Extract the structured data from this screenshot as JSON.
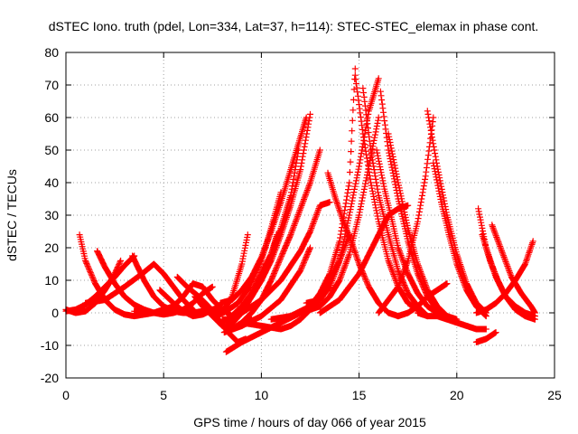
{
  "chart_data": {
    "type": "scatter",
    "title": "dSTEC Iono. truth (pdel, Lon=334, Lat=37, h=114): STEC-STEC_elemax in phase cont.",
    "xlabel": "GPS time / hours of day 066 of year 2015",
    "ylabel": "dSTEC  / TECUs",
    "xlim": [
      0,
      25
    ],
    "ylim": [
      -20,
      80
    ],
    "xticks": [
      0,
      5,
      10,
      15,
      20,
      25
    ],
    "yticks": [
      -20,
      -10,
      0,
      10,
      20,
      30,
      40,
      50,
      60,
      70,
      80
    ],
    "grid": true,
    "marker": "+",
    "color": "#ff0000",
    "series": [
      {
        "x": [
          0.7,
          1.0,
          1.5,
          2.0,
          2.5,
          3.0,
          3.5,
          4.0,
          4.5,
          5.0,
          5.5,
          6.0,
          6.4
        ],
        "y": [
          24,
          16,
          9,
          4,
          1,
          -0.5,
          -1,
          -0.5,
          0,
          1,
          1.5,
          0.5,
          0
        ]
      },
      {
        "x": [
          0.0,
          0.5,
          1.0,
          1.5,
          2.0,
          2.5,
          2.8
        ],
        "y": [
          1,
          0,
          0.5,
          3,
          7,
          12,
          16
        ]
      },
      {
        "x": [
          1.6,
          2.0,
          2.5,
          3.0,
          3.5,
          4.0,
          4.5,
          5.0,
          5.5,
          6.0,
          6.5,
          7.0,
          7.5
        ],
        "y": [
          19,
          14,
          9,
          5,
          2.5,
          1,
          0,
          -0.5,
          0,
          1,
          3,
          6,
          8
        ]
      },
      {
        "x": [
          0.0,
          0.5,
          1.0,
          1.5,
          2.0,
          2.5,
          3.0,
          3.5
        ],
        "y": [
          0.5,
          1,
          2.5,
          5,
          8,
          11,
          14.5,
          17.5
        ]
      },
      {
        "x": [
          3.4,
          4.0,
          4.5,
          5.0,
          5.5,
          6.0,
          6.5,
          7.0,
          7.5,
          8.0
        ],
        "y": [
          17.5,
          10,
          5,
          2,
          0.5,
          0,
          0,
          0.5,
          1,
          0.5
        ]
      },
      {
        "x": [
          1.0,
          2.0,
          3.0,
          4.0,
          4.5,
          5.0,
          5.5,
          6.0,
          6.5
        ],
        "y": [
          3,
          4,
          8,
          12.5,
          15,
          12,
          8,
          4,
          1
        ]
      },
      {
        "x": [
          4.8,
          5.5,
          6.0,
          6.5,
          7.0,
          7.5,
          8.0
        ],
        "y": [
          7,
          3,
          0.5,
          -1,
          -0.5,
          1,
          2
        ]
      },
      {
        "x": [
          3.5,
          4.5,
          5.5,
          6.0,
          6.5,
          7.0,
          7.5,
          8.0,
          8.5
        ],
        "y": [
          0.5,
          0,
          2,
          5,
          9,
          8,
          4,
          1,
          -1
        ]
      },
      {
        "x": [
          5.7,
          6.2,
          6.8,
          7.3,
          7.8,
          8.3,
          8.8,
          9.2
        ],
        "y": [
          11,
          8,
          5,
          2,
          -2,
          -6,
          -9,
          -8
        ]
      },
      {
        "x": [
          6.6,
          7.0,
          7.5,
          8.0,
          8.5,
          9.0,
          9.5
        ],
        "y": [
          5,
          2,
          -1,
          -4,
          -5,
          -4,
          -2
        ]
      },
      {
        "x": [
          7.0,
          7.5,
          7.8,
          8.0,
          8.5,
          9.0,
          9.3
        ],
        "y": [
          2,
          0,
          -0.5,
          0,
          5,
          15,
          24
        ]
      },
      {
        "x": [
          7.9,
          8.5,
          9.0,
          9.5,
          10.0,
          10.5,
          11.0,
          11.5,
          12.0,
          12.3
        ],
        "y": [
          3,
          4,
          7,
          11,
          17,
          25,
          34,
          44,
          54,
          60
        ]
      },
      {
        "x": [
          8.0,
          8.5,
          9.0,
          9.5,
          10.0,
          10.5,
          11.0,
          11.5,
          12.0,
          12.5
        ],
        "y": [
          -2,
          -2,
          1,
          5,
          10,
          16,
          24,
          33,
          44,
          61
        ]
      },
      {
        "x": [
          8.5,
          9.0,
          9.5,
          10.0,
          10.5,
          11.0,
          11.5,
          12.0,
          12.5,
          13.0
        ],
        "y": [
          -5,
          -3,
          0,
          4,
          10,
          17,
          24,
          32,
          40,
          50
        ]
      },
      {
        "x": [
          8.0,
          8.5,
          9.0,
          9.5,
          10.0,
          10.5,
          11.0,
          11.5,
          11.9
        ],
        "y": [
          -3,
          -1,
          2,
          5,
          10,
          17,
          26,
          36,
          50
        ]
      },
      {
        "x": [
          7.7,
          8.2,
          8.8,
          9.4,
          10.0,
          10.5,
          11.0
        ],
        "y": [
          -1,
          0.5,
          3,
          8,
          16,
          26,
          37
        ]
      },
      {
        "x": [
          8.4,
          9.0,
          9.5,
          10.0,
          10.5,
          10.9
        ],
        "y": [
          -4,
          0,
          5,
          11,
          18,
          25
        ]
      },
      {
        "x": [
          8.3,
          9.0,
          9.5,
          10.0,
          10.5,
          10.8
        ],
        "y": [
          -2,
          2,
          6,
          12,
          18,
          24
        ]
      },
      {
        "x": [
          8.2,
          9.0,
          10.0,
          11.0,
          12.0,
          12.5,
          13.0,
          13.5
        ],
        "y": [
          -3,
          0,
          4,
          10,
          19,
          25,
          33,
          34
        ]
      },
      {
        "x": [
          8.1,
          9.0,
          10.0,
          11.0,
          12.0,
          12.5
        ],
        "y": [
          -6,
          -4,
          -1,
          4,
          13,
          20
        ]
      },
      {
        "x": [
          8.2,
          9.0,
          10.0,
          11.0,
          12.0,
          12.5,
          13.0
        ],
        "y": [
          -12,
          -9,
          -6,
          -3,
          0,
          2,
          4
        ]
      },
      {
        "x": [
          9.0,
          10.0,
          11.0,
          11.5,
          12.0,
          12.5,
          13.0,
          13.5,
          14.0,
          14.5
        ],
        "y": [
          -3,
          -4,
          -5,
          -4,
          -2,
          1,
          5,
          10,
          16,
          24
        ]
      },
      {
        "x": [
          12.0,
          13.0,
          13.5,
          14.0,
          14.5,
          15.0,
          15.5,
          16.0
        ],
        "y": [
          0,
          2,
          5,
          10,
          18,
          30,
          45,
          60
        ]
      },
      {
        "x": [
          10.5,
          11.5,
          12.5,
          13.0,
          13.5,
          14.0,
          14.5,
          14.8
        ],
        "y": [
          -2,
          -1,
          2,
          6,
          12,
          22,
          40,
          75
        ]
      },
      {
        "x": [
          12.3,
          13.0,
          13.5,
          14.0,
          14.5,
          15.0,
          15.5,
          16.0
        ],
        "y": [
          3,
          4,
          8,
          16,
          30,
          45,
          62,
          72
        ]
      },
      {
        "x": [
          13.4,
          13.8,
          14.2,
          14.6,
          15.0,
          15.5,
          16.0,
          16.5,
          17.0
        ],
        "y": [
          43,
          35,
          28,
          22,
          15,
          8,
          3,
          0,
          -1
        ]
      },
      {
        "x": [
          14.8,
          15.2,
          15.6,
          16.0,
          16.5,
          17.0,
          17.5,
          18.0
        ],
        "y": [
          73,
          55,
          40,
          28,
          16,
          8,
          3,
          1
        ]
      },
      {
        "x": [
          15.2,
          15.6,
          16.0,
          16.5,
          17.0,
          17.5,
          18.0,
          18.5
        ],
        "y": [
          69,
          50,
          36,
          24,
          13,
          6,
          2,
          -1
        ]
      },
      {
        "x": [
          15.9,
          16.3,
          16.7,
          17.0,
          17.5,
          18.0,
          18.5,
          19.0
        ],
        "y": [
          50,
          38,
          28,
          20,
          12,
          6,
          2,
          0
        ]
      },
      {
        "x": [
          16.1,
          16.5,
          17.0,
          17.5,
          18.0,
          18.5,
          19.0,
          19.5
        ],
        "y": [
          68,
          50,
          35,
          22,
          12,
          5,
          1,
          -1
        ]
      },
      {
        "x": [
          16.5,
          17.0,
          17.5,
          18.0,
          18.5,
          19.0,
          19.5,
          20.0
        ],
        "y": [
          55,
          40,
          26,
          15,
          7,
          2,
          -1,
          -2
        ]
      },
      {
        "x": [
          13.0,
          14.0,
          15.0,
          15.5,
          16.0,
          16.5,
          17.0,
          17.5
        ],
        "y": [
          0,
          4,
          12,
          18,
          24,
          30,
          32,
          33
        ]
      },
      {
        "x": [
          16.0,
          17.0,
          17.5,
          18.0,
          18.4,
          18.8
        ],
        "y": [
          0,
          8,
          16,
          28,
          42,
          60
        ]
      },
      {
        "x": [
          18.5,
          19.0,
          19.5,
          20.0,
          20.5,
          21.0,
          21.5
        ],
        "y": [
          62,
          45,
          30,
          18,
          9,
          3,
          0
        ]
      },
      {
        "x": [
          18.8,
          19.2,
          19.6,
          20.0,
          20.5,
          21.0,
          21.5
        ],
        "y": [
          46,
          34,
          24,
          15,
          7,
          2,
          -1
        ]
      },
      {
        "x": [
          18.0,
          18.5,
          19.0,
          19.5,
          20.0,
          20.5,
          21.0,
          21.5
        ],
        "y": [
          0,
          -1,
          -1,
          -2,
          -3,
          -4,
          -5,
          -5
        ]
      },
      {
        "x": [
          17.0,
          17.5,
          18.0,
          18.5,
          19.0,
          19.5
        ],
        "y": [
          -1,
          0,
          2,
          5,
          7,
          9
        ]
      },
      {
        "x": [
          21.1,
          21.5,
          22.0,
          22.5,
          23.0,
          23.5,
          24.0
        ],
        "y": [
          32,
          20,
          11,
          5,
          1,
          -1,
          -2
        ]
      },
      {
        "x": [
          21.3,
          21.7,
          22.1,
          22.5,
          23.0,
          23.5,
          24.0
        ],
        "y": [
          24,
          16,
          10,
          5,
          2,
          0,
          -1
        ]
      },
      {
        "x": [
          21.8,
          22.3,
          22.8,
          23.3,
          23.8,
          24.0
        ],
        "y": [
          27,
          19,
          11,
          6,
          2,
          0
        ]
      },
      {
        "x": [
          21.0,
          21.5,
          22.0,
          22.5,
          23.0,
          23.5,
          23.9
        ],
        "y": [
          0,
          1,
          3,
          6,
          10,
          15,
          22
        ]
      },
      {
        "x": [
          21.0,
          21.5,
          22.0
        ],
        "y": [
          -9,
          -8,
          -6
        ]
      }
    ]
  }
}
